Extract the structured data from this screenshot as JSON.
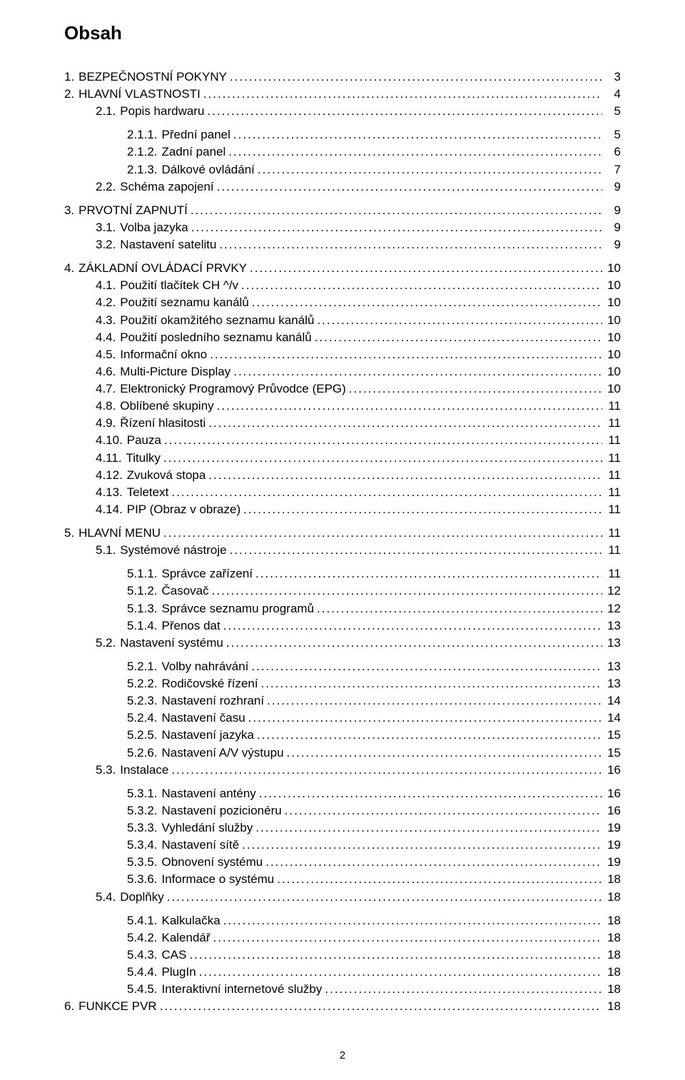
{
  "title": "Obsah",
  "page_number": "2",
  "fontsize_body": 17,
  "fontsize_title": 26,
  "text_color": "#000000",
  "background_color": "#ffffff",
  "toc": [
    {
      "gap": true
    },
    {
      "num": "1.",
      "label": "BEZPEČNOSTNÍ POKYNY",
      "page": "3",
      "indent": 0
    },
    {
      "num": "2.",
      "label": "HLAVNÍ VLASTNOSTI",
      "page": "4",
      "indent": 0
    },
    {
      "num": "2.1.",
      "label": "Popis hardwaru",
      "page": "5",
      "indent": 1
    },
    {
      "gap": true
    },
    {
      "num": "2.1.1.",
      "label": "Přední panel",
      "page": "5",
      "indent": 2
    },
    {
      "num": "2.1.2.",
      "label": "Zadní panel",
      "page": "6",
      "indent": 2
    },
    {
      "num": "2.1.3.",
      "label": "Dálkové ovládání",
      "page": "7",
      "indent": 2
    },
    {
      "num": "2.2.",
      "label": "Schéma zapojení",
      "page": "9",
      "indent": 1
    },
    {
      "gap": true
    },
    {
      "num": "3.",
      "label": "PRVOTNÍ ZAPNUTÍ",
      "page": "9",
      "indent": 0
    },
    {
      "num": "3.1.",
      "label": "Volba jazyka",
      "page": "9",
      "indent": 1
    },
    {
      "num": "3.2.",
      "label": "Nastavení satelitu",
      "page": "9",
      "indent": 1
    },
    {
      "gap": true
    },
    {
      "num": "4.",
      "label": "ZÁKLADNÍ OVLÁDACÍ PRVKY",
      "page": "10",
      "indent": 0
    },
    {
      "num": "4.1.",
      "label": "Použití tlačítek CH ^/v",
      "page": "10",
      "indent": 1
    },
    {
      "num": "4.2.",
      "label": "Použití seznamu kanálů",
      "page": "10",
      "indent": 1
    },
    {
      "num": "4.3.",
      "label": "Použití okamžitého seznamu kanálů",
      "page": "10",
      "indent": 1
    },
    {
      "num": "4.4.",
      "label": "Použití posledního seznamu kanálů",
      "page": "10",
      "indent": 1
    },
    {
      "num": "4.5.",
      "label": "Informační okno",
      "page": "10",
      "indent": 1
    },
    {
      "num": "4.6.",
      "label": "Multi-Picture Display",
      "page": "10",
      "indent": 1
    },
    {
      "num": "4.7.",
      "label": "Elektronický Programový Průvodce (EPG)",
      "page": "10",
      "indent": 1
    },
    {
      "num": "4.8.",
      "label": "Oblíbené skupiny",
      "page": "11",
      "indent": 1
    },
    {
      "num": "4.9.",
      "label": "Řízení hlasitosti",
      "page": "11",
      "indent": 1
    },
    {
      "num": "4.10.",
      "label": "Pauza",
      "page": "11",
      "indent": 1
    },
    {
      "num": "4.11.",
      "label": "Titulky",
      "page": "11",
      "indent": 1
    },
    {
      "num": "4.12.",
      "label": "Zvuková stopa",
      "page": "11",
      "indent": 1
    },
    {
      "num": "4.13.",
      "label": "Teletext",
      "page": "11",
      "indent": 1
    },
    {
      "num": "4.14.",
      "label": "PIP (Obraz v obraze)",
      "page": "11",
      "indent": 1
    },
    {
      "gap": true
    },
    {
      "num": "5.",
      "label": "HLAVNÍ MENU",
      "page": "11",
      "indent": 0
    },
    {
      "num": "5.1.",
      "label": "Systémové nástroje",
      "page": "11",
      "indent": 1
    },
    {
      "gap": true
    },
    {
      "num": "5.1.1.",
      "label": "Správce zařízení",
      "page": "11",
      "indent": 2
    },
    {
      "num": "5.1.2.",
      "label": "Časovač",
      "page": "12",
      "indent": 2
    },
    {
      "num": "5.1.3.",
      "label": "Správce seznamu programů",
      "page": "12",
      "indent": 2
    },
    {
      "num": "5.1.4.",
      "label": "Přenos dat",
      "page": "13",
      "indent": 2
    },
    {
      "num": "5.2.",
      "label": "Nastavení systému",
      "page": "13",
      "indent": 1
    },
    {
      "gap": true
    },
    {
      "num": "5.2.1.",
      "label": "Volby nahrávání",
      "page": "13",
      "indent": 2
    },
    {
      "num": "5.2.2.",
      "label": "Rodičovské řízení",
      "page": "13",
      "indent": 2
    },
    {
      "num": "5.2.3.",
      "label": "Nastavení rozhraní",
      "page": "14",
      "indent": 2
    },
    {
      "num": "5.2.4.",
      "label": "Nastavení času",
      "page": "14",
      "indent": 2
    },
    {
      "num": "5.2.5.",
      "label": "Nastavení jazyka",
      "page": "15",
      "indent": 2
    },
    {
      "num": "5.2.6.",
      "label": "Nastavení A/V výstupu",
      "page": "15",
      "indent": 2
    },
    {
      "num": "5.3.",
      "label": "Instalace",
      "page": "16",
      "indent": 1
    },
    {
      "gap": true
    },
    {
      "num": "5.3.1.",
      "label": "Nastavení antény",
      "page": "16",
      "indent": 2
    },
    {
      "num": "5.3.2.",
      "label": "Nastavení pozicionéru",
      "page": "16",
      "indent": 2
    },
    {
      "num": "5.3.3.",
      "label": "Vyhledání služby",
      "page": "19",
      "indent": 2
    },
    {
      "num": "5.3.4.",
      "label": "Nastavení sítě",
      "page": "19",
      "indent": 2
    },
    {
      "num": "5.3.5.",
      "label": "Obnovení systému",
      "page": "19",
      "indent": 2
    },
    {
      "num": "5.3.6.",
      "label": "Informace o systému",
      "page": "18",
      "indent": 2
    },
    {
      "num": "5.4.",
      "label": "Doplňky",
      "page": "18",
      "indent": 1
    },
    {
      "gap": true
    },
    {
      "num": "5.4.1.",
      "label": "Kalkulačka",
      "page": "18",
      "indent": 2
    },
    {
      "num": "5.4.2.",
      "label": "Kalendář",
      "page": "18",
      "indent": 2
    },
    {
      "num": "5.4.3.",
      "label": "CAS",
      "page": "18",
      "indent": 2
    },
    {
      "num": "5.4.4.",
      "label": "PlugIn",
      "page": "18",
      "indent": 2
    },
    {
      "num": "5.4.5.",
      "label": "Interaktivní internetové služby",
      "page": "18",
      "indent": 2
    },
    {
      "num": "6.",
      "label": "FUNKCE PVR",
      "page": "18",
      "indent": 0
    }
  ]
}
